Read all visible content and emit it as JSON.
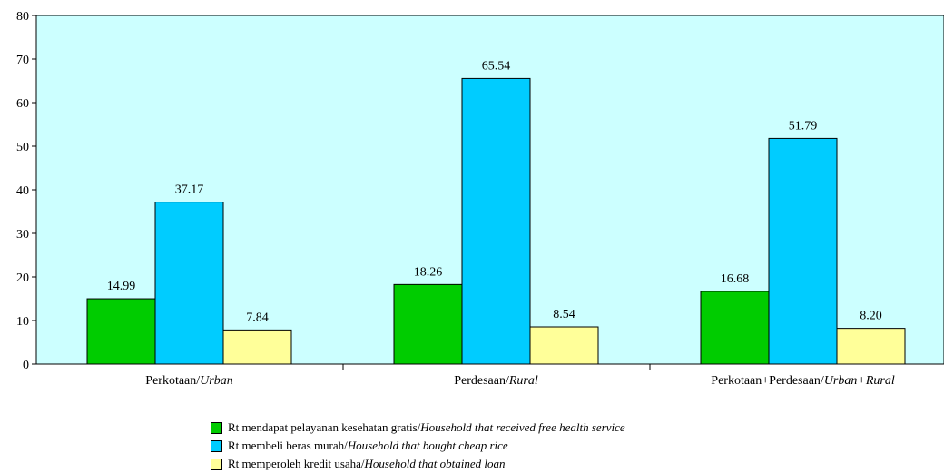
{
  "chart_data": {
    "type": "bar",
    "title": "",
    "xlabel": "",
    "ylabel": "",
    "ylim": [
      0,
      80
    ],
    "yticks": [
      0,
      10,
      20,
      30,
      40,
      50,
      60,
      70,
      80
    ],
    "plot_background": "#ccffff",
    "categories": [
      {
        "main": "Perkotaan/",
        "italic": "Urban"
      },
      {
        "main": "Perdesaan/",
        "italic": "Rural"
      },
      {
        "main": "Perkotaan+Perdesaan/",
        "italic": "Urban+Rural"
      }
    ],
    "series": [
      {
        "name": "Rt mendapat pelayanan kesehatan gratis/",
        "name_en": "Household that received free health service",
        "color": "#00cc00",
        "values": [
          14.99,
          18.26,
          16.68
        ],
        "labels": [
          "14.99",
          "18.26",
          "16.68"
        ]
      },
      {
        "name": "Rt membeli beras murah/",
        "name_en": "Household that bought cheap rice",
        "color": "#00ccff",
        "values": [
          37.17,
          65.54,
          51.79
        ],
        "labels": [
          "37.17",
          "65.54",
          "51.79"
        ]
      },
      {
        "name": "Rt memperoleh kredit usaha/",
        "name_en": "Household that obtained loan",
        "color": "#ffff99",
        "values": [
          7.84,
          8.54,
          8.2
        ],
        "labels": [
          "7.84",
          "8.54",
          "8.20"
        ]
      }
    ],
    "grid": false,
    "legend_position": "bottom"
  }
}
